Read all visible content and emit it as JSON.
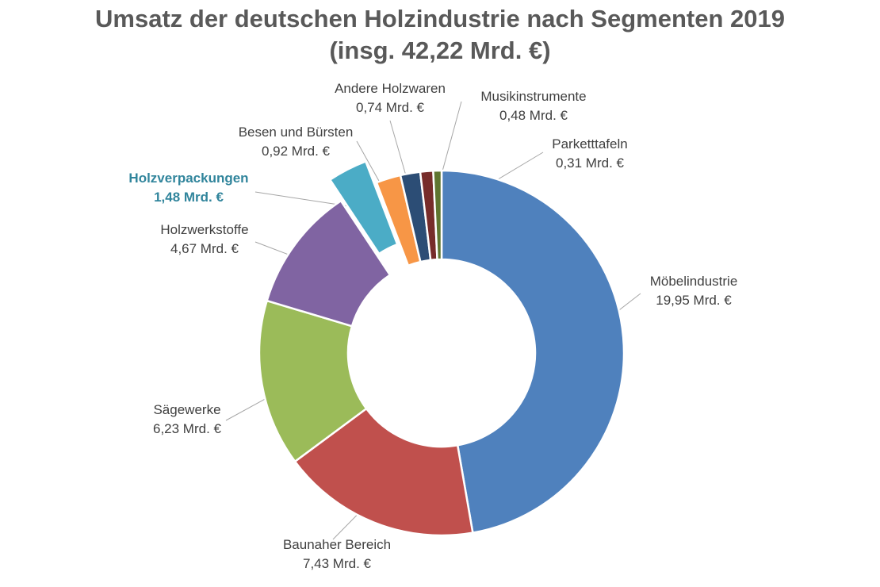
{
  "chart_data": {
    "type": "pie",
    "variant": "doughnut",
    "title": "Umsatz der deutschen Holzindustrie nach Segmenten 2019",
    "subtitle": "(insg. 42,22 Mrd. €)",
    "total": 42.22,
    "unit": "Mrd. €",
    "highlighted": "Holzverpackungen",
    "slices": [
      {
        "name": "Möbelindustrie",
        "value": 19.95,
        "label": "19,95 Mrd. €",
        "color": "#4f81bd"
      },
      {
        "name": "Baunaher Bereich",
        "value": 7.43,
        "label": "7,43 Mrd. €",
        "color": "#c0504d"
      },
      {
        "name": "Sägewerke",
        "value": 6.23,
        "label": "6,23 Mrd. €",
        "color": "#9bbb59"
      },
      {
        "name": "Holzwerkstoffe",
        "value": 4.67,
        "label": "4,67 Mrd. €",
        "color": "#8064a2"
      },
      {
        "name": "Holzverpackungen",
        "value": 1.48,
        "label": "1,48 Mrd. €",
        "color": "#4bacc6",
        "exploded": true
      },
      {
        "name": "Besen und Bürsten",
        "value": 0.92,
        "label": "0,92 Mrd. €",
        "color": "#f79646"
      },
      {
        "name": "Andere Holzwaren",
        "value": 0.74,
        "label": "0,74 Mrd. €",
        "color": "#2c4d75"
      },
      {
        "name": "Musikinstrumente",
        "value": 0.48,
        "label": "0,48 Mrd. €",
        "color": "#772c2a"
      },
      {
        "name": "Parketttafeln",
        "value": 0.31,
        "label": "0,31 Mrd. €",
        "color": "#5f7530"
      }
    ]
  }
}
